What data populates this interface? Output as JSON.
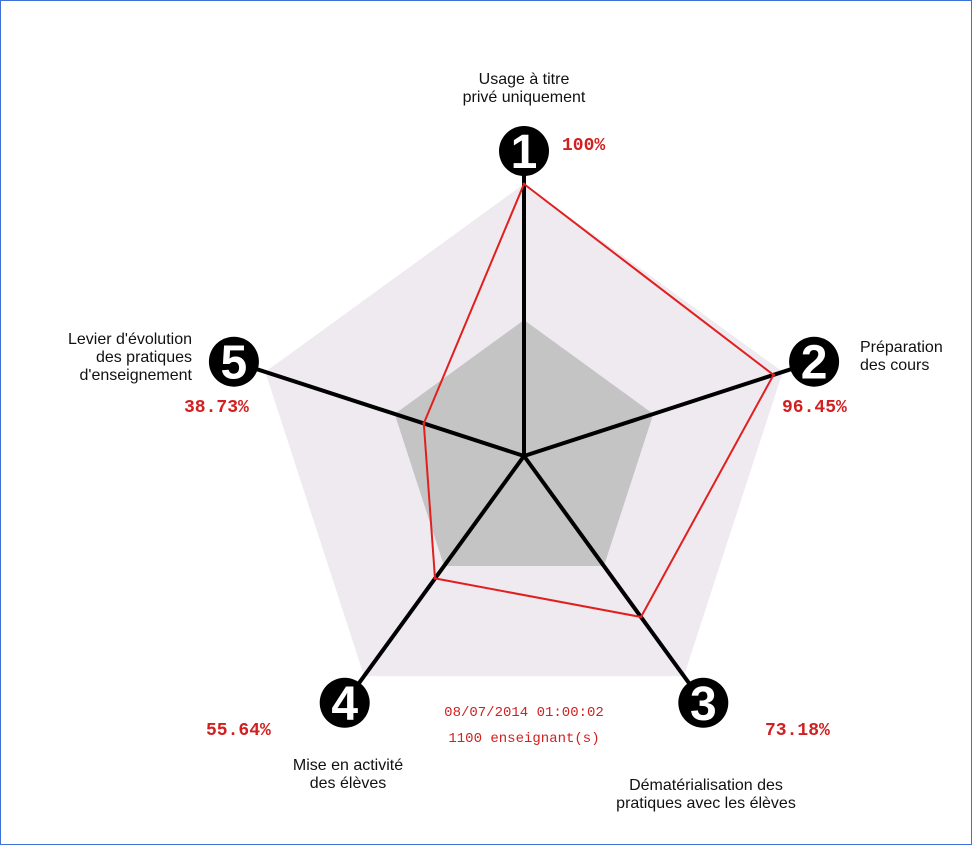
{
  "chart_data": {
    "type": "radar",
    "max": 100,
    "axes": [
      {
        "number": "1",
        "label_lines": [
          "Usage à titre",
          "privé uniquement"
        ],
        "value": 100,
        "value_text": "100%"
      },
      {
        "number": "2",
        "label_lines": [
          "Préparation",
          "des cours"
        ],
        "value": 96.45,
        "value_text": "96.45%"
      },
      {
        "number": "3",
        "label_lines": [
          "Dématérialisation des",
          "pratiques avec les élèves"
        ],
        "value": 73.18,
        "value_text": "73.18%"
      },
      {
        "number": "4",
        "label_lines": [
          "Mise en activité",
          "des élèves"
        ],
        "value": 55.64,
        "value_text": "55.64%"
      },
      {
        "number": "5",
        "label_lines": [
          "Levier d'évolution",
          "des pratiques",
          "d'enseignement"
        ],
        "value": 38.73,
        "value_text": "38.73%"
      }
    ],
    "reference_levels": [
      100,
      50
    ],
    "date_text": "08/07/2014 01:00:02",
    "count_text": "1100 enseignant(s)"
  },
  "colors": {
    "series": "#e0201f",
    "text_value": "#d21f1f",
    "outer_band": "#eeeaf0",
    "inner_band": "#c4c4c4",
    "axis": "#000000",
    "marker": "#000000"
  }
}
